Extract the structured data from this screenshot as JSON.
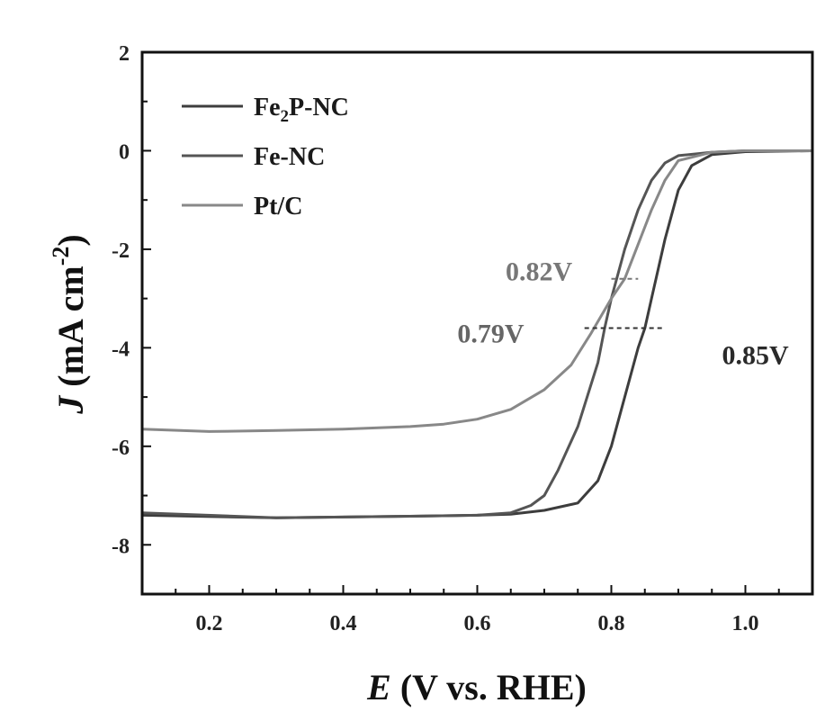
{
  "chart_data": {
    "type": "line",
    "xlabel_italic": "E",
    "xlabel_rest": " (V vs. RHE)",
    "ylabel_italic": "J",
    "ylabel_rest": " (mA cm",
    "ylabel_sup": "-2",
    "ylabel_close": ")",
    "xlim": [
      0.1,
      1.1
    ],
    "ylim": [
      -9,
      2
    ],
    "x_ticks": [
      0.2,
      0.4,
      0.6,
      0.8,
      1.0
    ],
    "x_tick_labels": [
      "0.2",
      "0.4",
      "0.6",
      "0.8",
      "1.0"
    ],
    "y_ticks": [
      2,
      0,
      -2,
      -4,
      -6,
      -8
    ],
    "y_tick_labels": [
      "2",
      "0",
      "-2",
      "-4",
      "-6",
      "-8"
    ],
    "grid": false,
    "legend_position": "top-left",
    "legend": [
      {
        "main": "Fe",
        "sub": "2",
        "rest": "P-NC"
      },
      {
        "main": "Fe-NC",
        "sub": "",
        "rest": ""
      },
      {
        "main": "Pt/C",
        "sub": "",
        "rest": ""
      }
    ],
    "series": [
      {
        "name": "Fe2P-NC",
        "color": "#3d3d3d",
        "x": [
          0.1,
          0.3,
          0.5,
          0.6,
          0.65,
          0.7,
          0.75,
          0.78,
          0.8,
          0.82,
          0.84,
          0.85,
          0.86,
          0.88,
          0.9,
          0.92,
          0.95,
          1.0,
          1.1
        ],
        "y": [
          -7.4,
          -7.45,
          -7.42,
          -7.4,
          -7.38,
          -7.3,
          -7.15,
          -6.7,
          -6.0,
          -5.0,
          -4.0,
          -3.6,
          -3.0,
          -1.8,
          -0.8,
          -0.3,
          -0.08,
          -0.02,
          0.0
        ]
      },
      {
        "name": "Fe-NC",
        "color": "#555555",
        "x": [
          0.1,
          0.3,
          0.5,
          0.6,
          0.65,
          0.68,
          0.7,
          0.72,
          0.75,
          0.78,
          0.79,
          0.8,
          0.82,
          0.84,
          0.86,
          0.88,
          0.9,
          0.95,
          1.0,
          1.1
        ],
        "y": [
          -7.35,
          -7.45,
          -7.42,
          -7.4,
          -7.35,
          -7.2,
          -7.0,
          -6.5,
          -5.6,
          -4.3,
          -3.6,
          -3.0,
          -2.0,
          -1.2,
          -0.6,
          -0.25,
          -0.1,
          -0.03,
          0.0,
          0.0
        ]
      },
      {
        "name": "Pt/C",
        "color": "#888888",
        "x": [
          0.1,
          0.2,
          0.3,
          0.4,
          0.5,
          0.55,
          0.6,
          0.65,
          0.7,
          0.74,
          0.77,
          0.8,
          0.82,
          0.84,
          0.86,
          0.88,
          0.9,
          0.95,
          1.0,
          1.1
        ],
        "y": [
          -5.65,
          -5.7,
          -5.68,
          -5.65,
          -5.6,
          -5.55,
          -5.45,
          -5.25,
          -4.85,
          -4.35,
          -3.7,
          -3.0,
          -2.6,
          -1.9,
          -1.2,
          -0.6,
          -0.2,
          -0.03,
          0.0,
          0.0
        ]
      }
    ],
    "annotations": [
      {
        "text": "0.82V",
        "color": "#777777",
        "x_anchor": 0.81,
        "y_anchor": -2.6
      },
      {
        "text": "0.79V",
        "color": "#666666",
        "x_anchor": 0.785,
        "y_anchor": -3.6
      },
      {
        "text": "0.85V",
        "color": "#2a2a2a",
        "x_anchor": 0.855,
        "y_anchor": -3.6
      }
    ],
    "dashed_markers": [
      {
        "y": -2.6,
        "x_from": 0.8,
        "x_to": 0.84,
        "color": "#777777"
      },
      {
        "y": -3.6,
        "x_from": 0.76,
        "x_to": 0.88,
        "color": "#333333"
      }
    ]
  }
}
